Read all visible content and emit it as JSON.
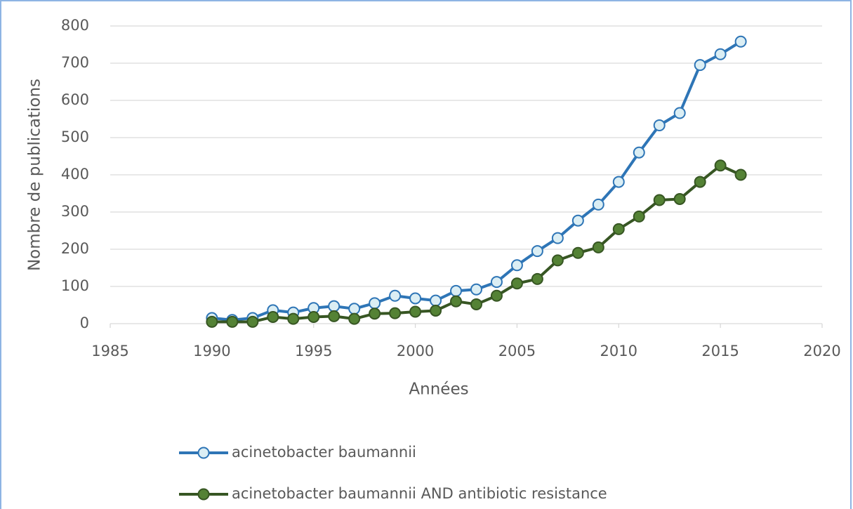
{
  "chart_data": {
    "type": "scatter",
    "xlabel": "Années",
    "ylabel": "Nombre de publications",
    "x": [
      1990,
      1991,
      1992,
      1993,
      1994,
      1995,
      1996,
      1997,
      1998,
      1999,
      2000,
      2001,
      2002,
      2003,
      2004,
      2005,
      2006,
      2007,
      2008,
      2009,
      2010,
      2011,
      2012,
      2013,
      2014,
      2015,
      2016
    ],
    "series": [
      {
        "name": "acinetobacter baumannii",
        "color": "#2e75b6",
        "marker_color": "#dbeef4",
        "values": [
          15,
          10,
          15,
          36,
          30,
          42,
          47,
          40,
          55,
          75,
          68,
          62,
          88,
          92,
          112,
          157,
          195,
          230,
          277,
          320,
          381,
          460,
          533,
          566,
          695,
          724,
          758
        ]
      },
      {
        "name": "acinetobacter baumannii AND antibiotic resistance",
        "color": "#375623",
        "marker_color": "#548235",
        "values": [
          5,
          5,
          5,
          18,
          13,
          18,
          20,
          13,
          27,
          28,
          32,
          35,
          60,
          52,
          75,
          108,
          120,
          170,
          190,
          205,
          254,
          288,
          332,
          335,
          381,
          425,
          400
        ]
      }
    ],
    "xlim": [
      1985,
      2020
    ],
    "xticks": [
      1985,
      1990,
      1995,
      2000,
      2005,
      2010,
      2015,
      2020
    ],
    "ylim": [
      0,
      800
    ],
    "yticks": [
      0,
      100,
      200,
      300,
      400,
      500,
      600,
      700,
      800
    ],
    "grid": true,
    "lines": true,
    "legend": "bottom"
  }
}
